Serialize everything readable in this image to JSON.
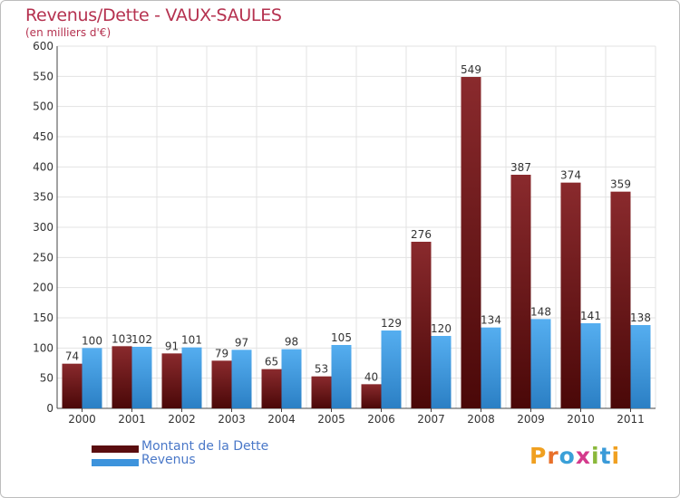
{
  "header": {
    "title": "Revenus/Dette - VAUX-SAULES",
    "subtitle": "(en milliers d'€)"
  },
  "colors": {
    "debt": "#7a1f22",
    "debt_dark": "#4a0808",
    "revenue": "#4ea6ea",
    "revenue_dark": "#2b7fc4",
    "grid": "#e3e3e3",
    "title": "#b5314f",
    "legend_text": "#4a78c8"
  },
  "chart_data": {
    "type": "bar",
    "title": "Revenus/Dette - VAUX-SAULES",
    "ylabel": "(en milliers d'€)",
    "xlabel": "",
    "ylim": [
      0,
      600
    ],
    "yticks": [
      0,
      50,
      100,
      150,
      200,
      250,
      300,
      350,
      400,
      450,
      500,
      550,
      600
    ],
    "grid": true,
    "legend_position": "bottom-left",
    "categories": [
      "2000",
      "2001",
      "2002",
      "2003",
      "2004",
      "2005",
      "2006",
      "2007",
      "2008",
      "2009",
      "2010",
      "2011"
    ],
    "series": [
      {
        "name": "Montant de la Dette",
        "values": [
          74,
          103,
          91,
          79,
          65,
          53,
          40,
          276,
          549,
          387,
          374,
          359
        ]
      },
      {
        "name": "Revenus",
        "values": [
          100,
          102,
          101,
          97,
          98,
          105,
          129,
          120,
          134,
          148,
          141,
          138
        ]
      }
    ]
  },
  "legend": {
    "items": [
      {
        "label": "Montant de la Dette"
      },
      {
        "label": "Revenus"
      }
    ]
  },
  "logo": {
    "letters": [
      {
        "ch": "P",
        "color": "#f0a020"
      },
      {
        "ch": "r",
        "color": "#e8702a"
      },
      {
        "ch": "o",
        "color": "#3aa0d8"
      },
      {
        "ch": "x",
        "color": "#d43a8c"
      },
      {
        "ch": "i",
        "color": "#8ab83a"
      },
      {
        "ch": "t",
        "color": "#3a9ad8"
      },
      {
        "ch": "i",
        "color": "#f0a020"
      }
    ]
  }
}
